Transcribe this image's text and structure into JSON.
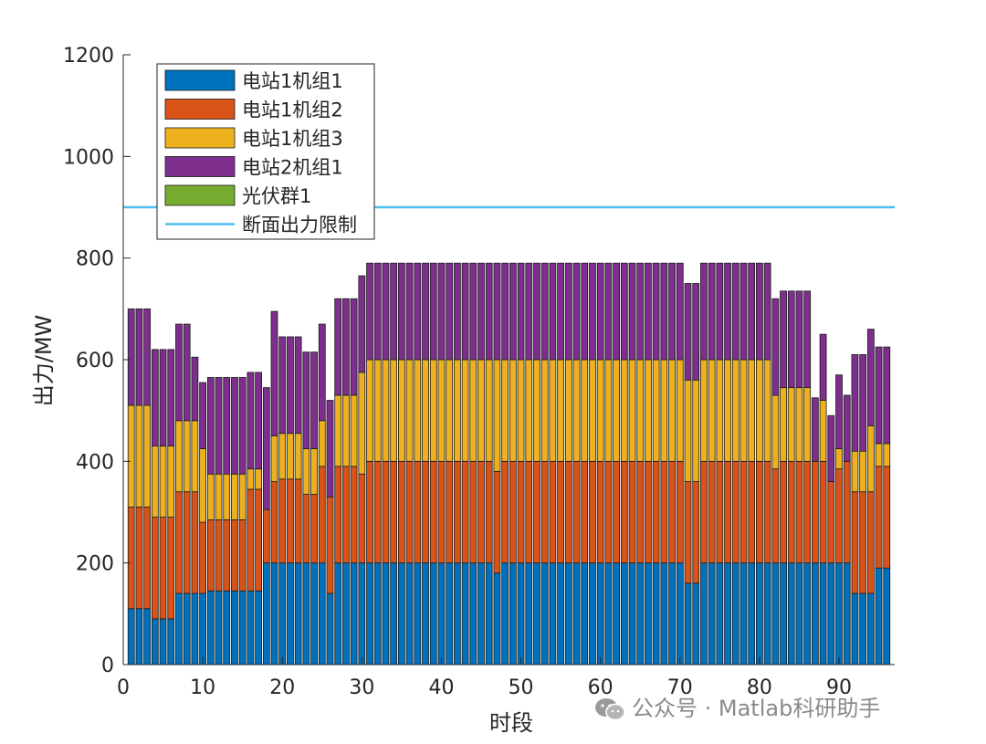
{
  "chart_data": {
    "type": "bar",
    "stacked": true,
    "xlabel": "时段",
    "ylabel": "出力/MW",
    "xlim": [
      0,
      97
    ],
    "ylim": [
      0,
      1200
    ],
    "xticks": [
      0,
      10,
      20,
      30,
      40,
      50,
      60,
      70,
      80,
      90
    ],
    "yticks": [
      0,
      200,
      400,
      600,
      800,
      1000,
      1200
    ],
    "legend_position": "top-left",
    "categories": [
      1,
      2,
      3,
      4,
      5,
      6,
      7,
      8,
      9,
      10,
      11,
      12,
      13,
      14,
      15,
      16,
      17,
      18,
      19,
      20,
      21,
      22,
      23,
      24,
      25,
      26,
      27,
      28,
      29,
      30,
      31,
      32,
      33,
      34,
      35,
      36,
      37,
      38,
      39,
      40,
      41,
      42,
      43,
      44,
      45,
      46,
      47,
      48,
      49,
      50,
      51,
      52,
      53,
      54,
      55,
      56,
      57,
      58,
      59,
      60,
      61,
      62,
      63,
      64,
      65,
      66,
      67,
      68,
      69,
      70,
      71,
      72,
      73,
      74,
      75,
      76,
      77,
      78,
      79,
      80,
      81,
      82,
      83,
      84,
      85,
      86,
      87,
      88,
      89,
      90,
      91,
      92,
      93,
      94,
      95,
      96
    ],
    "series": [
      {
        "name": "电站1机组1",
        "color": "#0072BD",
        "values": [
          110,
          110,
          110,
          90,
          90,
          90,
          140,
          140,
          140,
          140,
          145,
          145,
          145,
          145,
          145,
          145,
          145,
          200,
          200,
          200,
          200,
          200,
          200,
          200,
          200,
          140,
          200,
          200,
          200,
          200,
          200,
          200,
          200,
          200,
          200,
          200,
          200,
          200,
          200,
          200,
          200,
          200,
          200,
          200,
          200,
          200,
          180,
          200,
          200,
          200,
          200,
          200,
          200,
          200,
          200,
          200,
          200,
          200,
          200,
          200,
          200,
          200,
          200,
          200,
          200,
          200,
          200,
          200,
          200,
          200,
          160,
          160,
          200,
          200,
          200,
          200,
          200,
          200,
          200,
          200,
          200,
          200,
          200,
          200,
          200,
          200,
          200,
          200,
          200,
          200,
          200,
          140,
          140,
          140,
          190,
          190
        ]
      },
      {
        "name": "电站1机组2",
        "color": "#D95319",
        "values": [
          200,
          200,
          200,
          200,
          200,
          200,
          200,
          200,
          200,
          140,
          140,
          140,
          140,
          140,
          140,
          200,
          200,
          105,
          160,
          165,
          165,
          165,
          135,
          135,
          190,
          190,
          190,
          190,
          190,
          175,
          200,
          200,
          200,
          200,
          200,
          200,
          200,
          200,
          200,
          200,
          200,
          200,
          200,
          200,
          200,
          200,
          200,
          200,
          200,
          200,
          200,
          200,
          200,
          200,
          200,
          200,
          200,
          200,
          200,
          200,
          200,
          200,
          200,
          200,
          200,
          200,
          200,
          200,
          200,
          200,
          200,
          200,
          200,
          200,
          200,
          200,
          200,
          200,
          200,
          200,
          200,
          185,
          200,
          200,
          200,
          200,
          200,
          200,
          160,
          185,
          200,
          200,
          200,
          200,
          200,
          200
        ]
      },
      {
        "name": "电站1机组3",
        "color": "#EDB120",
        "values": [
          200,
          200,
          200,
          140,
          140,
          140,
          140,
          140,
          140,
          145,
          90,
          90,
          90,
          90,
          90,
          40,
          40,
          0,
          90,
          90,
          90,
          90,
          90,
          90,
          90,
          0,
          140,
          140,
          140,
          200,
          200,
          200,
          200,
          200,
          200,
          200,
          200,
          200,
          200,
          200,
          200,
          200,
          200,
          200,
          200,
          200,
          220,
          200,
          200,
          200,
          200,
          200,
          200,
          200,
          200,
          200,
          200,
          200,
          200,
          200,
          200,
          200,
          200,
          200,
          200,
          200,
          200,
          200,
          200,
          200,
          200,
          200,
          200,
          200,
          200,
          200,
          200,
          200,
          200,
          200,
          200,
          145,
          145,
          145,
          145,
          145,
          0,
          120,
          0,
          40,
          0,
          80,
          80,
          130,
          45,
          45
        ]
      },
      {
        "name": "电站2机组1",
        "color": "#7E2F8E",
        "values": [
          190,
          190,
          190,
          190,
          190,
          190,
          190,
          190,
          125,
          130,
          190,
          190,
          190,
          190,
          190,
          190,
          190,
          240,
          245,
          190,
          190,
          190,
          190,
          190,
          190,
          190,
          190,
          190,
          190,
          190,
          190,
          190,
          190,
          190,
          190,
          190,
          190,
          190,
          190,
          190,
          190,
          190,
          190,
          190,
          190,
          190,
          190,
          190,
          190,
          190,
          190,
          190,
          190,
          190,
          190,
          190,
          190,
          190,
          190,
          190,
          190,
          190,
          190,
          190,
          190,
          190,
          190,
          190,
          190,
          190,
          190,
          190,
          190,
          190,
          190,
          190,
          190,
          190,
          190,
          190,
          190,
          190,
          190,
          190,
          190,
          190,
          125,
          130,
          130,
          145,
          130,
          190,
          190,
          190,
          190,
          190
        ]
      },
      {
        "name": "光伏群1",
        "color": "#77AC30",
        "values": [
          0,
          0,
          0,
          0,
          0,
          0,
          0,
          0,
          0,
          0,
          0,
          0,
          0,
          0,
          0,
          0,
          0,
          0,
          0,
          0,
          0,
          0,
          0,
          0,
          0,
          0,
          0,
          0,
          0,
          0,
          0,
          0,
          0,
          0,
          0,
          0,
          0,
          0,
          0,
          0,
          0,
          0,
          0,
          0,
          0,
          0,
          0,
          0,
          0,
          0,
          0,
          0,
          0,
          0,
          0,
          0,
          0,
          0,
          0,
          0,
          0,
          0,
          0,
          0,
          0,
          0,
          0,
          0,
          0,
          0,
          0,
          0,
          0,
          0,
          0,
          0,
          0,
          0,
          0,
          0,
          0,
          0,
          0,
          0,
          0,
          0,
          0,
          0,
          0,
          0,
          0,
          0,
          0,
          0,
          0,
          0
        ]
      }
    ],
    "line": {
      "name": "断面出力限制",
      "color": "#4DBEEE",
      "y": 900
    }
  },
  "watermark": "公众号 · Matlab科研助手"
}
